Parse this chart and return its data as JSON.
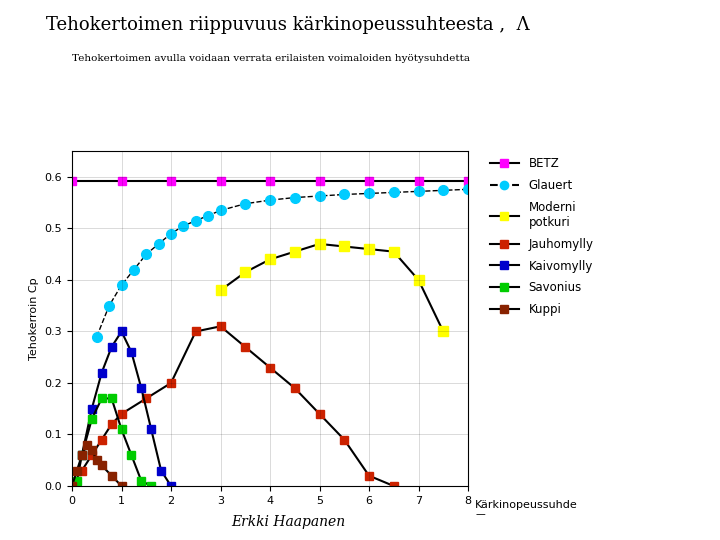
{
  "title": "Tehokertoimen riippuvuus kärkinopeussuhteesta ,  Λ",
  "subtitle": "Tehokertoimen avulla voidaan verrata erilaisten voimaloiden hyötysuhdetta",
  "xlabel": "Kärkinopeussuhde",
  "ylabel": "Tehokerroin Cp",
  "footer": "Erkki Haapanen",
  "xlim": [
    0,
    8
  ],
  "ylim": [
    0,
    0.65
  ],
  "xticks": [
    0,
    1,
    2,
    3,
    4,
    5,
    6,
    7,
    8
  ],
  "yticks": [
    0,
    0.1,
    0.2,
    0.3,
    0.4,
    0.5,
    0.6
  ],
  "betz": {
    "x": [
      0,
      1,
      2,
      3,
      4,
      5,
      6,
      7,
      8
    ],
    "y": [
      0.593,
      0.593,
      0.593,
      0.593,
      0.593,
      0.593,
      0.593,
      0.593,
      0.593
    ],
    "line_color": "#000000",
    "marker_color": "#ff00ff",
    "linestyle": "-",
    "marker": "s",
    "label": "BETZ"
  },
  "glauert": {
    "x": [
      0.5,
      0.75,
      1.0,
      1.25,
      1.5,
      1.75,
      2.0,
      2.25,
      2.5,
      2.75,
      3.0,
      3.5,
      4.0,
      4.5,
      5.0,
      5.5,
      6.0,
      6.5,
      7.0,
      7.5,
      8.0
    ],
    "y": [
      0.29,
      0.35,
      0.39,
      0.42,
      0.45,
      0.47,
      0.49,
      0.505,
      0.515,
      0.525,
      0.535,
      0.548,
      0.555,
      0.56,
      0.563,
      0.566,
      0.568,
      0.57,
      0.572,
      0.574,
      0.576
    ],
    "line_color": "#000000",
    "marker_color": "#00ccff",
    "linestyle": "--",
    "marker": "o",
    "label": "Glauert"
  },
  "moderni": {
    "x": [
      3.0,
      3.5,
      4.0,
      4.5,
      5.0,
      5.5,
      6.0,
      6.5,
      7.0,
      7.5
    ],
    "y": [
      0.38,
      0.415,
      0.44,
      0.455,
      0.47,
      0.465,
      0.46,
      0.455,
      0.4,
      0.3
    ],
    "line_color": "#000000",
    "marker_color": "#ffff00",
    "linestyle": "-",
    "marker": "s",
    "label": "Moderni\npotkuri"
  },
  "jauhomylly": {
    "x": [
      0.2,
      0.4,
      0.6,
      0.8,
      1.0,
      1.5,
      2.0,
      2.5,
      3.0,
      3.5,
      4.0,
      4.5,
      5.0,
      5.5,
      6.0,
      6.5
    ],
    "y": [
      0.03,
      0.06,
      0.09,
      0.12,
      0.14,
      0.17,
      0.2,
      0.3,
      0.31,
      0.27,
      0.23,
      0.19,
      0.14,
      0.09,
      0.02,
      0.0
    ],
    "line_color": "#000000",
    "marker_color": "#cc2200",
    "linestyle": "-",
    "marker": "s",
    "label": "Jauhomylly"
  },
  "kaivomylly": {
    "x": [
      0.2,
      0.4,
      0.6,
      0.8,
      1.0,
      1.2,
      1.4,
      1.6,
      1.8,
      2.0
    ],
    "y": [
      0.06,
      0.15,
      0.22,
      0.27,
      0.3,
      0.26,
      0.19,
      0.11,
      0.03,
      0.0
    ],
    "line_color": "#000000",
    "marker_color": "#0000cc",
    "linestyle": "-",
    "marker": "s",
    "label": "Kaivomylly"
  },
  "savonius": {
    "x": [
      0.1,
      0.2,
      0.4,
      0.6,
      0.8,
      1.0,
      1.2,
      1.4,
      1.6
    ],
    "y": [
      0.01,
      0.06,
      0.13,
      0.17,
      0.17,
      0.11,
      0.06,
      0.01,
      0.0
    ],
    "line_color": "#000000",
    "marker_color": "#00cc00",
    "linestyle": "-",
    "marker": "s",
    "label": "Savonius"
  },
  "kuppi": {
    "x": [
      0.0,
      0.1,
      0.2,
      0.3,
      0.4,
      0.5,
      0.6,
      0.8,
      1.0
    ],
    "y": [
      0.0,
      0.03,
      0.06,
      0.08,
      0.07,
      0.05,
      0.04,
      0.02,
      0.0
    ],
    "line_color": "#000000",
    "marker_color": "#882200",
    "linestyle": "-",
    "marker": "s",
    "label": "Kuppi"
  },
  "background": "#ffffff",
  "plot_bg": "#ffffff"
}
